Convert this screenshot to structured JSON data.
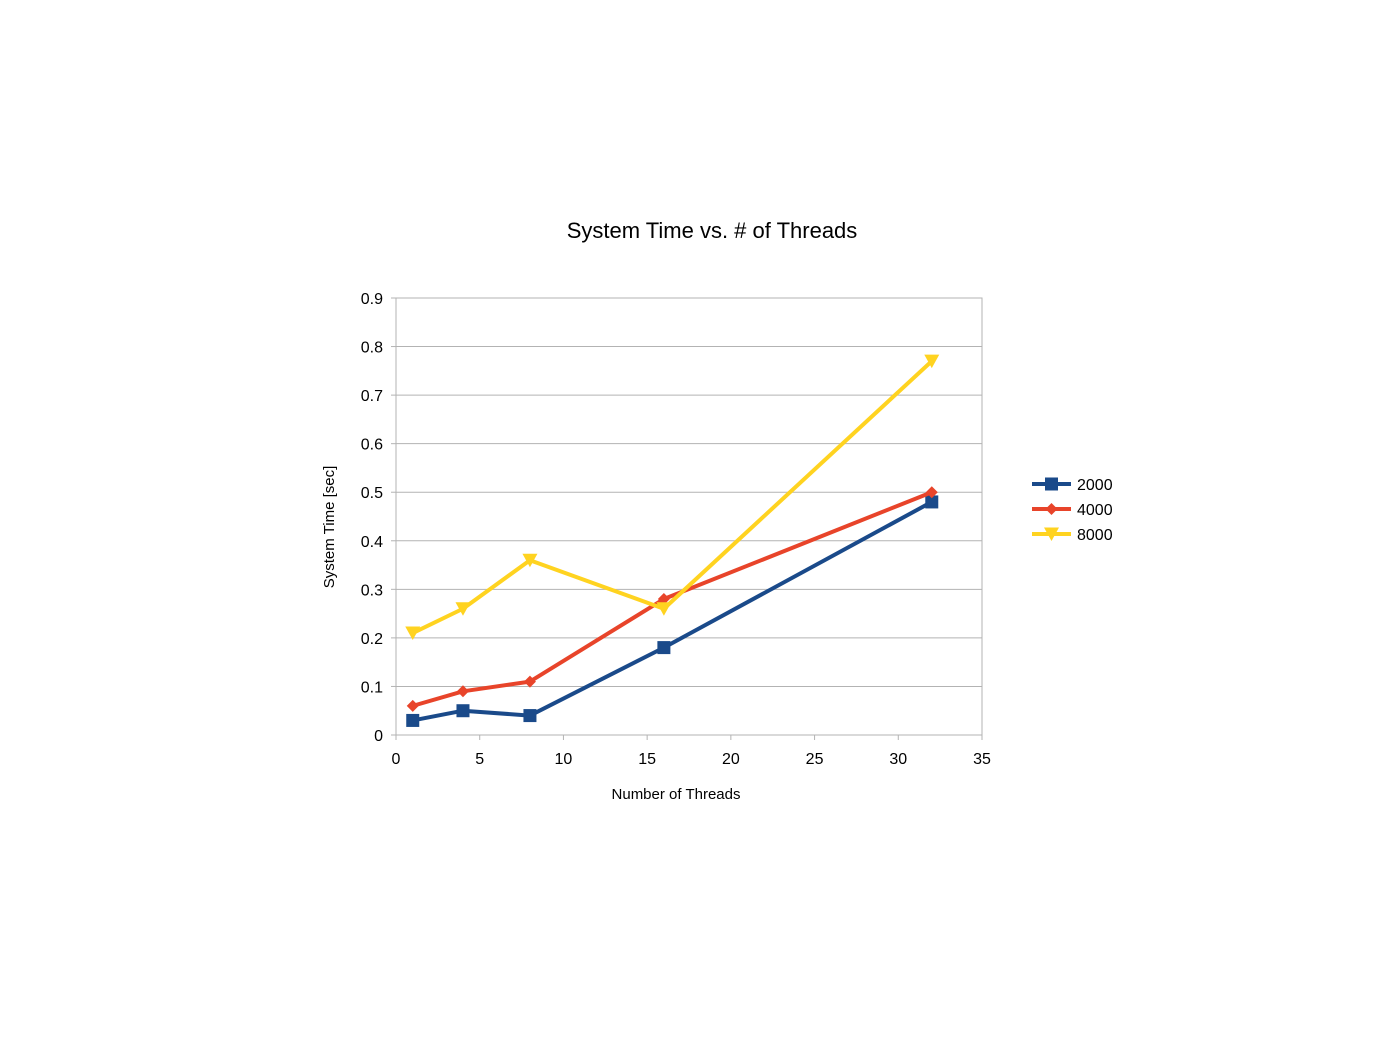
{
  "chart_data": {
    "type": "line",
    "title": "System Time vs. # of Threads",
    "xlabel": "Number of Threads",
    "ylabel": "System Time [sec]",
    "xlim": [
      0,
      35
    ],
    "ylim": [
      0,
      0.9
    ],
    "xticks": [
      0,
      5,
      10,
      15,
      20,
      25,
      30,
      35
    ],
    "yticks": [
      0,
      0.1,
      0.2,
      0.3,
      0.4,
      0.5,
      0.6,
      0.7,
      0.8,
      0.9
    ],
    "x": [
      1,
      4,
      8,
      16,
      32
    ],
    "grid": "horizontal",
    "legend_position": "right",
    "series": [
      {
        "name": "2000",
        "color": "#1a4a8a",
        "marker": "square",
        "values": [
          0.03,
          0.05,
          0.04,
          0.18,
          0.48
        ]
      },
      {
        "name": "4000",
        "color": "#e8442a",
        "marker": "diamond",
        "values": [
          0.06,
          0.09,
          0.11,
          0.28,
          0.5
        ]
      },
      {
        "name": "8000",
        "color": "#ffd320",
        "marker": "triangle-down",
        "values": [
          0.21,
          0.26,
          0.36,
          0.26,
          0.77
        ]
      }
    ]
  }
}
